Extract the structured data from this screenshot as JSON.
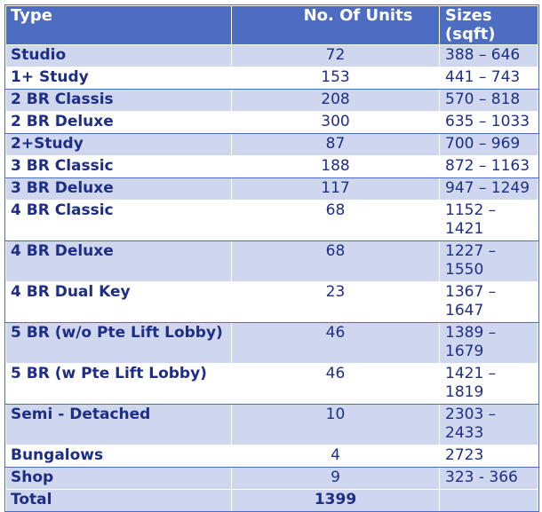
{
  "header": {
    "type": "Type",
    "units": "No. Of Units",
    "sizes": "Sizes (sqft)"
  },
  "rows": [
    {
      "type": "Studio",
      "units": "72",
      "sizes": "388 – 646"
    },
    {
      "type": "1+ Study",
      "units": "153",
      "sizes": "441 – 743"
    },
    {
      "type": "2 BR Classis",
      "units": "208",
      "sizes": "570 – 818"
    },
    {
      "type": "2 BR Deluxe",
      "units": "300",
      "sizes": "635 – 1033"
    },
    {
      "type": "2+Study",
      "units": "87",
      "sizes": "700 – 969"
    },
    {
      "type": "3 BR Classic",
      "units": "188",
      "sizes": "872 – 1163"
    },
    {
      "type": "3 BR Deluxe",
      "units": "117",
      "sizes": "947 – 1249"
    },
    {
      "type": "4 BR Classic",
      "units": "68",
      "sizes": "1152 – 1421"
    },
    {
      "type": "4 BR Deluxe",
      "units": "68",
      "sizes": "1227 – 1550"
    },
    {
      "type": "4 BR Dual Key",
      "units": "23",
      "sizes": "1367 – 1647"
    },
    {
      "type": "5 BR (w/o Pte Lift Lobby)",
      "units": "46",
      "sizes": "1389 – 1679"
    },
    {
      "type": "5 BR (w Pte Lift Lobby)",
      "units": "46",
      "sizes": "1421 – 1819"
    },
    {
      "type": "Semi - Detached",
      "units": "10",
      "sizes": "2303 – 2433"
    },
    {
      "type": "Bungalows",
      "units": "4",
      "sizes": "2723"
    },
    {
      "type": "Shop",
      "units": "9",
      "sizes": "323 - 366"
    }
  ],
  "total": {
    "label": "Total",
    "units": "1399",
    "sizes": ""
  },
  "colors": {
    "header_bg": "#4d6dc3",
    "band_bg": "#cfd7ee",
    "text": "#1e2d86"
  }
}
